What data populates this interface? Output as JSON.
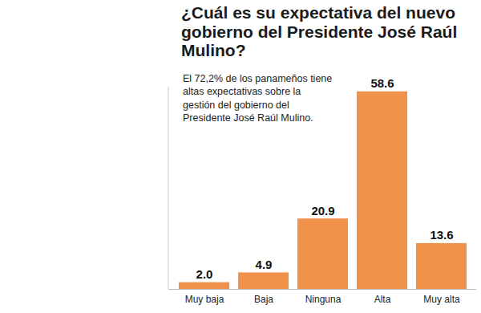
{
  "chart_data": {
    "type": "bar",
    "title": "¿Cuál es su expectativa del nuevo gobierno del Presidente José Raúl Mulino?",
    "subtitle": "El 72,2% de los panameños tiene altas expectativas sobre la gestión del gobierno del Presidente José Raúl Mulino.",
    "categories": [
      "Muy baja",
      "Baja",
      "Ninguna",
      "Alta",
      "Muy alta"
    ],
    "values": [
      2.0,
      4.9,
      20.9,
      58.6,
      13.6
    ],
    "value_labels": [
      "2.0",
      "4.9",
      "20.9",
      "58.6",
      "13.6"
    ],
    "color": "#f0924a",
    "ylim": [
      0,
      60
    ],
    "grid": false,
    "data_labels": true,
    "tick_labels": "x"
  }
}
